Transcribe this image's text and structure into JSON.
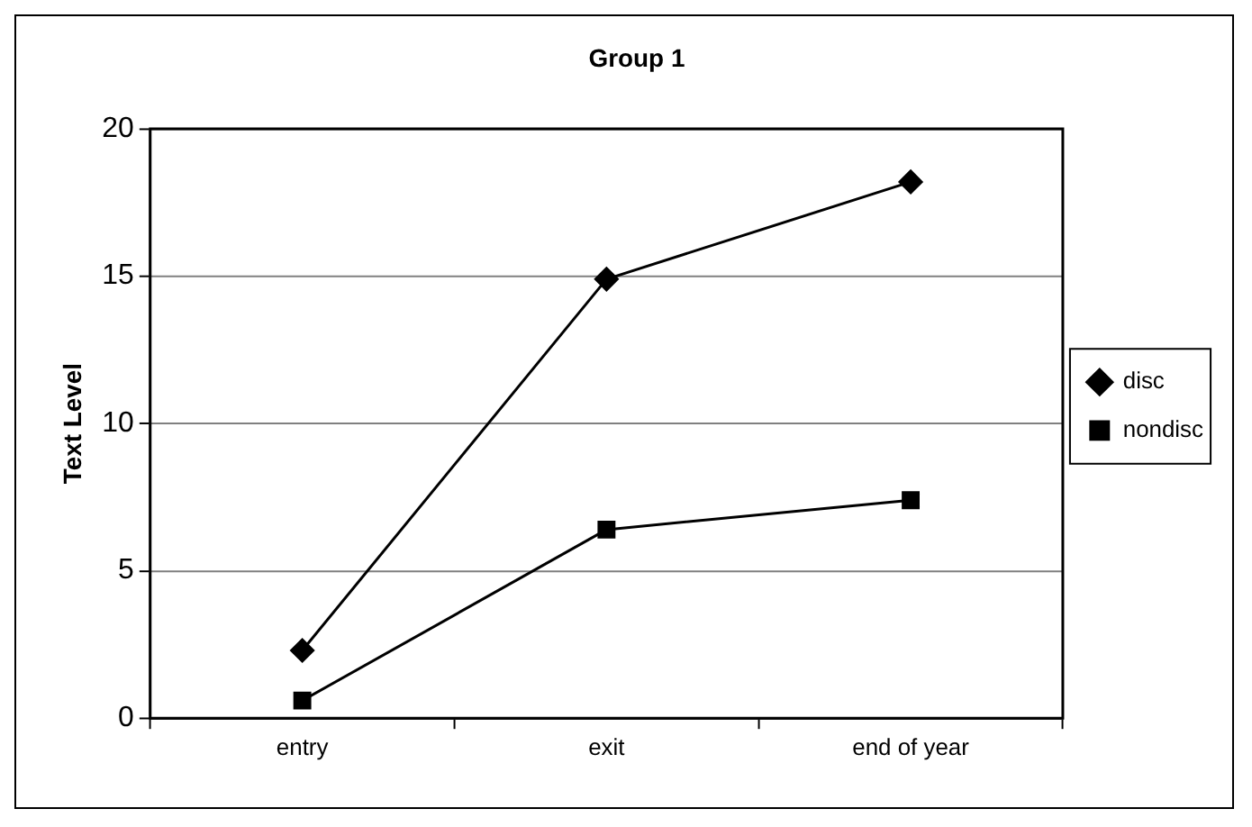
{
  "chart_data": {
    "type": "line",
    "title": "Group 1",
    "ylabel": "Text Level",
    "categories": [
      "entry",
      "exit",
      "end of year"
    ],
    "series": [
      {
        "name": "disc",
        "color": "#000000",
        "marker": "diamond",
        "values": [
          2.3,
          14.9,
          18.2
        ]
      },
      {
        "name": "nondisc",
        "color": "#000000",
        "marker": "square",
        "values": [
          0.6,
          6.4,
          7.4
        ]
      }
    ],
    "ylim": [
      0,
      20
    ],
    "yticks": [
      0,
      5,
      10,
      15,
      20
    ],
    "grid": "y",
    "legend": "right"
  }
}
